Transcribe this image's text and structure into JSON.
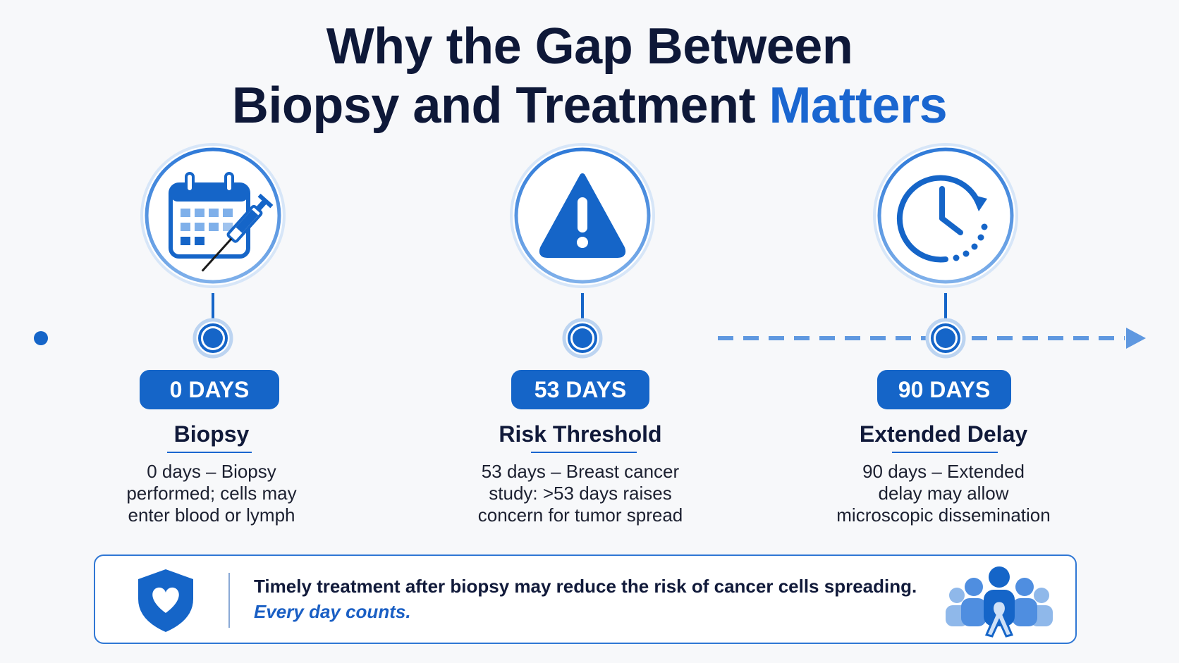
{
  "title": {
    "line1": "Why the Gap Between",
    "line2_main": "Biopsy and Treatment ",
    "line2_accent": "Matters"
  },
  "colors": {
    "primary": "#1565c8",
    "accent_text": "#1a66d0",
    "dark_text": "#0e1838",
    "light_blue": "#9fc3ee"
  },
  "stages": [
    {
      "icon": "calendar-syringe-icon",
      "badge": "0 DAYS",
      "title": "Biopsy",
      "desc_lines": [
        "0 days – Biopsy",
        "performed; cells may",
        "enter blood or lymph"
      ]
    },
    {
      "icon": "warning-icon",
      "badge": "53 DAYS",
      "title": "Risk Threshold",
      "desc_lines": [
        "53 days – Breast cancer",
        "study: >53 days raises",
        "concern for tumor spread"
      ]
    },
    {
      "icon": "clock-icon",
      "badge": "90 DAYS",
      "title": "Extended Delay",
      "desc_lines": [
        "90 days – Extended",
        "delay may allow",
        "microscopic dissemination"
      ]
    }
  ],
  "banner": {
    "shield_icon": "shield-heart-icon",
    "line1": "Timely treatment after biopsy may reduce  the risk of cancer cells spreading.",
    "line2": "Every day counts.",
    "group_icon": "people-ribbon-icon"
  }
}
